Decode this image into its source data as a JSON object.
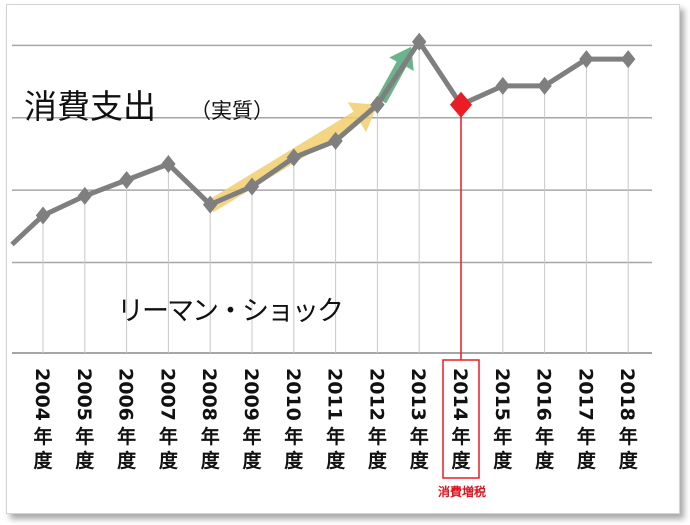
{
  "chart_data": {
    "type": "line",
    "title": "消費支出",
    "subtitle": "（実質）",
    "categories": [
      "2004年度",
      "2005年度",
      "2006年度",
      "2007年度",
      "2008年度",
      "2009年度",
      "2010年度",
      "2011年度",
      "2012年度",
      "2013年度",
      "2014年度",
      "2015年度",
      "2016年度",
      "2017年度",
      "2018年度"
    ],
    "values": [
      65,
      92,
      114,
      136,
      80,
      105,
      145,
      168,
      218,
      305,
      218,
      244,
      244,
      281,
      281
    ],
    "lead_in_value": 25,
    "ylim": [
      -125,
      335
    ],
    "gridlines": [
      0,
      100,
      200,
      300
    ],
    "grid": true,
    "highlight_index": 10,
    "annotations": {
      "lehman": "リーマン・ショック",
      "tax": "消費増税"
    },
    "colors": {
      "line": "#7f7f7f",
      "marker": "#7f7f7f",
      "highlight": "#ea1c24",
      "grid": "#a6a6a6",
      "arrow_rise": "#f2ce6d",
      "arrow_peak": "#5aac80"
    }
  }
}
